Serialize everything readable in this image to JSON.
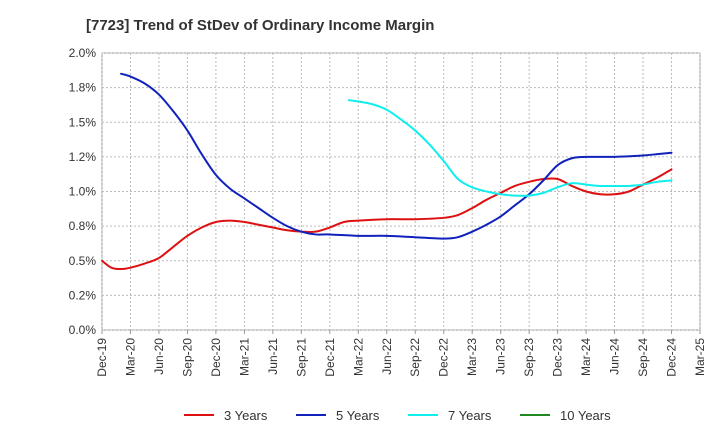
{
  "chart_data": {
    "type": "line",
    "title": "[7723]  Trend of StDev of Ordinary Income Margin",
    "xlabel": "",
    "ylabel": "",
    "ylim": [
      0,
      0.02
    ],
    "y_ticks": [
      {
        "value": 0.0,
        "label": "0.0%"
      },
      {
        "value": 0.0025,
        "label": "0.2%"
      },
      {
        "value": 0.005,
        "label": "0.5%"
      },
      {
        "value": 0.0075,
        "label": "0.8%"
      },
      {
        "value": 0.01,
        "label": "1.0%"
      },
      {
        "value": 0.0125,
        "label": "1.2%"
      },
      {
        "value": 0.015,
        "label": "1.5%"
      },
      {
        "value": 0.0175,
        "label": "1.8%"
      },
      {
        "value": 0.02,
        "label": "2.0%"
      }
    ],
    "categories": [
      "Dec-19",
      "Mar-20",
      "Jun-20",
      "Sep-20",
      "Dec-20",
      "Mar-21",
      "Jun-21",
      "Sep-21",
      "Dec-21",
      "Mar-22",
      "Jun-22",
      "Sep-22",
      "Dec-22",
      "Mar-23",
      "Jun-23",
      "Sep-23",
      "Dec-23",
      "Mar-24",
      "Jun-24",
      "Sep-24",
      "Dec-24",
      "Mar-25"
    ],
    "grid": true,
    "legend_position": "bottom",
    "series": [
      {
        "name": "3 Years",
        "color": "#dd1111",
        "points": [
          [
            0,
            0.005
          ],
          [
            0.33,
            0.0045
          ],
          [
            0.67,
            0.0044
          ],
          [
            1,
            0.0045
          ],
          [
            1.5,
            0.0048
          ],
          [
            2,
            0.0052
          ],
          [
            2.5,
            0.006
          ],
          [
            3,
            0.0068
          ],
          [
            3.5,
            0.0074
          ],
          [
            4,
            0.0078
          ],
          [
            4.5,
            0.0079
          ],
          [
            5,
            0.0078
          ],
          [
            5.5,
            0.0076
          ],
          [
            6,
            0.0074
          ],
          [
            6.5,
            0.0072
          ],
          [
            7,
            0.0071
          ],
          [
            7.5,
            0.0071
          ],
          [
            8,
            0.0074
          ],
          [
            8.5,
            0.0078
          ],
          [
            9,
            0.0079
          ],
          [
            10,
            0.008
          ],
          [
            11,
            0.008
          ],
          [
            12,
            0.0081
          ],
          [
            12.5,
            0.0083
          ],
          [
            13,
            0.0088
          ],
          [
            13.5,
            0.0094
          ],
          [
            14,
            0.0099
          ],
          [
            14.5,
            0.0104
          ],
          [
            15,
            0.0107
          ],
          [
            15.5,
            0.0109
          ],
          [
            16,
            0.0109
          ],
          [
            16.5,
            0.0104
          ],
          [
            17,
            0.01
          ],
          [
            17.5,
            0.0098
          ],
          [
            18,
            0.0098
          ],
          [
            18.5,
            0.01
          ],
          [
            19,
            0.0105
          ],
          [
            19.5,
            0.011
          ],
          [
            20,
            0.0116
          ]
        ]
      },
      {
        "name": "5 Years",
        "color": "#1122bb",
        "points": [
          [
            0.67,
            0.0185
          ],
          [
            1,
            0.0183
          ],
          [
            1.5,
            0.0178
          ],
          [
            2,
            0.017
          ],
          [
            2.5,
            0.0158
          ],
          [
            3,
            0.0144
          ],
          [
            3.5,
            0.0127
          ],
          [
            4,
            0.0112
          ],
          [
            4.5,
            0.0102
          ],
          [
            5,
            0.0095
          ],
          [
            5.5,
            0.0088
          ],
          [
            6,
            0.0081
          ],
          [
            6.5,
            0.0075
          ],
          [
            7,
            0.0071
          ],
          [
            7.5,
            0.0069
          ],
          [
            8,
            0.0069
          ],
          [
            9,
            0.0068
          ],
          [
            10,
            0.0068
          ],
          [
            11,
            0.0067
          ],
          [
            12,
            0.0066
          ],
          [
            12.5,
            0.0067
          ],
          [
            13,
            0.0071
          ],
          [
            13.5,
            0.0076
          ],
          [
            14,
            0.0082
          ],
          [
            14.5,
            0.009
          ],
          [
            15,
            0.0098
          ],
          [
            15.5,
            0.0108
          ],
          [
            16,
            0.0119
          ],
          [
            16.5,
            0.0124
          ],
          [
            17,
            0.0125
          ],
          [
            18,
            0.0125
          ],
          [
            19,
            0.0126
          ],
          [
            19.5,
            0.0127
          ],
          [
            20,
            0.0128
          ]
        ]
      },
      {
        "name": "7 Years",
        "color": "#11eeee",
        "points": [
          [
            8.67,
            0.0166
          ],
          [
            9,
            0.0165
          ],
          [
            9.5,
            0.0163
          ],
          [
            10,
            0.0159
          ],
          [
            10.5,
            0.0152
          ],
          [
            11,
            0.0144
          ],
          [
            11.5,
            0.0134
          ],
          [
            12,
            0.0122
          ],
          [
            12.5,
            0.0109
          ],
          [
            13,
            0.0103
          ],
          [
            13.5,
            0.01
          ],
          [
            14,
            0.0098
          ],
          [
            14.5,
            0.0097
          ],
          [
            15,
            0.0097
          ],
          [
            15.5,
            0.0099
          ],
          [
            16,
            0.0103
          ],
          [
            16.5,
            0.0106
          ],
          [
            17,
            0.0105
          ],
          [
            17.5,
            0.0104
          ],
          [
            18,
            0.0104
          ],
          [
            18.5,
            0.0104
          ],
          [
            19,
            0.0105
          ],
          [
            19.5,
            0.0107
          ],
          [
            20,
            0.0108
          ]
        ]
      },
      {
        "name": "10 Years",
        "color": "#228822",
        "points": []
      }
    ]
  }
}
